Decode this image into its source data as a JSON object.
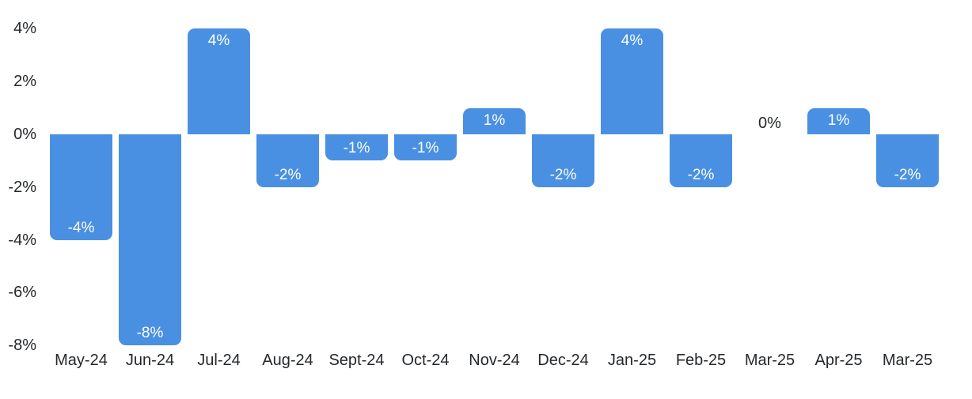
{
  "chart_data": {
    "type": "bar",
    "title": "",
    "xlabel": "",
    "ylabel": "",
    "categories": [
      "May-24",
      "Jun-24",
      "Jul-24",
      "Aug-24",
      "Sept-24",
      "Oct-24",
      "Nov-24",
      "Dec-24",
      "Jan-25",
      "Feb-25",
      "Mar-25",
      "Apr-25",
      "Mar-25"
    ],
    "values": [
      -4,
      -8,
      4,
      -2,
      -1,
      -1,
      1,
      -2,
      4,
      -2,
      0,
      1,
      -2
    ],
    "bar_labels": [
      "-4%",
      "-8%",
      "4%",
      "-2%",
      "-1%",
      "-1%",
      "1%",
      "-2%",
      "4%",
      "-2%",
      "0%",
      "1%",
      "-2%"
    ],
    "unit": "%",
    "y_ticks": [
      {
        "label": "4%",
        "value": 4
      },
      {
        "label": "2%",
        "value": 2
      },
      {
        "label": "0%",
        "value": 0
      },
      {
        "label": "-2%",
        "value": -2
      },
      {
        "label": "-4%",
        "value": -4
      },
      {
        "label": "-6%",
        "value": -6
      },
      {
        "label": "-8%",
        "value": -8
      }
    ],
    "ylim": [
      -8,
      4
    ],
    "grid": false,
    "legend": "none",
    "colors": {
      "bar": "#4a90e2",
      "bar_label": "#ffffff",
      "axis_text": "#25282b",
      "zero_label": "#25282b",
      "background": "#ffffff"
    }
  }
}
